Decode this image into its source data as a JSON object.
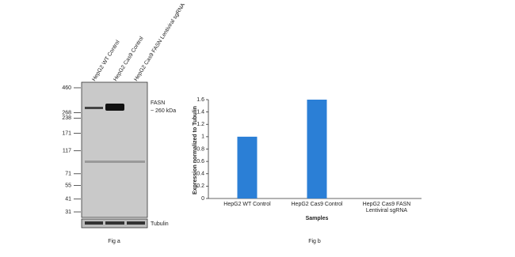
{
  "blot": {
    "lanes": [
      "HepG2 WT Control",
      "HepG2 Cas9 Control",
      "HepG2 Cas9 FASN Lentiviral sgRNA"
    ],
    "markers": [
      460,
      268,
      238,
      171,
      117,
      71,
      55,
      41,
      31
    ],
    "band_label": "FASN",
    "band_size": "~ 260 kDa",
    "loading_control": "Tubulin",
    "caption": "Fig a"
  },
  "chart_data": {
    "type": "bar",
    "caption": "Fig b",
    "x_label": "Samples",
    "y_label": "Expression normalized to Tubulin",
    "categories": [
      "HepG2 WT Control",
      "HepG2 Cas9 Control",
      "HepG2 Cas9 FASN Lentiviral sgRNA"
    ],
    "values": [
      1,
      1.6,
      0
    ],
    "color": "#2b7fd6",
    "ylim": [
      0,
      1.6
    ],
    "yticks": [
      0,
      0.2,
      0.4,
      0.6,
      0.8,
      1,
      1.2,
      1.4,
      1.6
    ],
    "grid": false
  }
}
